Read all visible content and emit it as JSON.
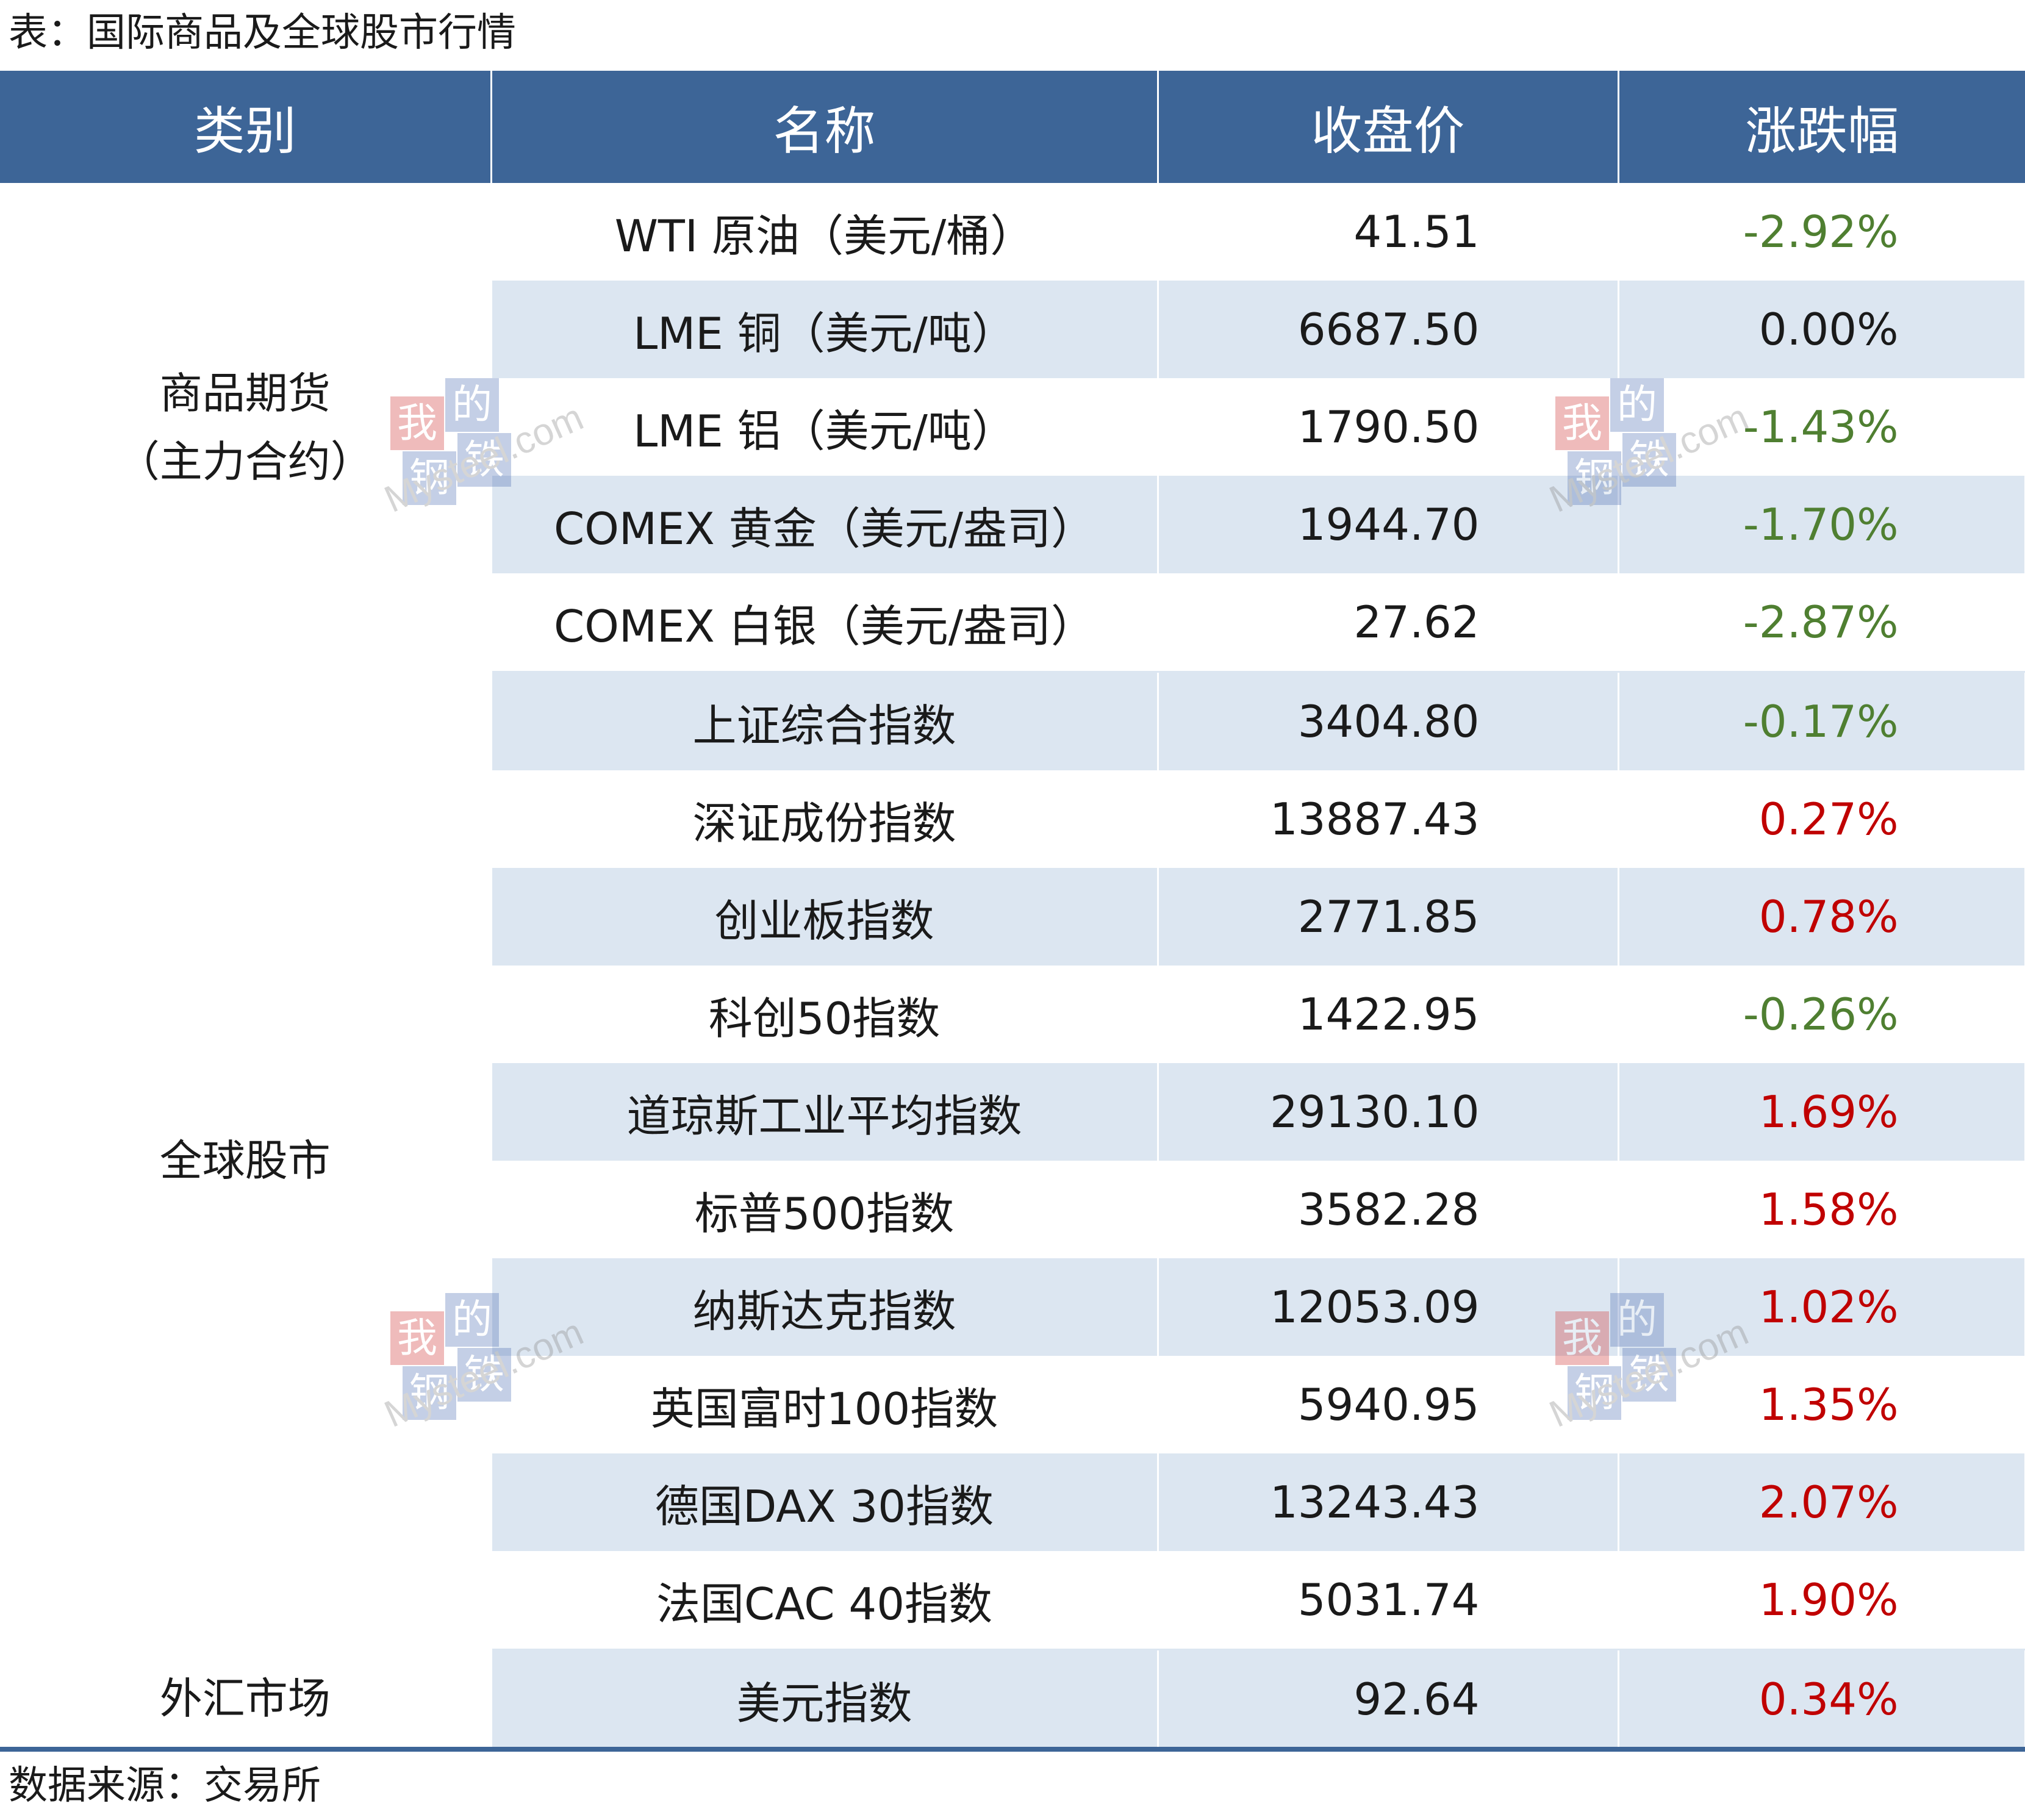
{
  "caption": "表：国际商品及全球股市行情",
  "headers": [
    "类别",
    "名称",
    "收盘价",
    "涨跌幅"
  ],
  "groups": [
    {
      "category_line1": "商品期货",
      "category_line2": "（主力合约）",
      "rows": [
        {
          "name": "WTI 原油（美元/桶）",
          "price": "41.51",
          "change": "-2.92%",
          "direction": "down"
        },
        {
          "name": "LME 铜（美元/吨）",
          "price": "6687.50",
          "change": "0.00%",
          "direction": "flat"
        },
        {
          "name": "LME 铝（美元/吨）",
          "price": "1790.50",
          "change": "-1.43%",
          "direction": "down"
        },
        {
          "name": "COMEX 黄金（美元/盎司）",
          "price": "1944.70",
          "change": "-1.70%",
          "direction": "down"
        },
        {
          "name": "COMEX 白银（美元/盎司）",
          "price": "27.62",
          "change": "-2.87%",
          "direction": "down"
        }
      ]
    },
    {
      "category_line1": "全球股市",
      "rows": [
        {
          "name": "上证综合指数",
          "price": "3404.80",
          "change": "-0.17%",
          "direction": "down"
        },
        {
          "name": "深证成份指数",
          "price": "13887.43",
          "change": "0.27%",
          "direction": "up"
        },
        {
          "name": "创业板指数",
          "price": "2771.85",
          "change": "0.78%",
          "direction": "up"
        },
        {
          "name": "科创50指数",
          "price": "1422.95",
          "change": "-0.26%",
          "direction": "down"
        },
        {
          "name": "道琼斯工业平均指数",
          "price": "29130.10",
          "change": "1.69%",
          "direction": "up"
        },
        {
          "name": "标普500指数",
          "price": "3582.28",
          "change": "1.58%",
          "direction": "up"
        },
        {
          "name": "纳斯达克指数",
          "price": "12053.09",
          "change": "1.02%",
          "direction": "up"
        },
        {
          "name": "英国富时100指数",
          "price": "5940.95",
          "change": "1.35%",
          "direction": "up"
        },
        {
          "name": "德国DAX 30指数",
          "price": "13243.43",
          "change": "2.07%",
          "direction": "up"
        },
        {
          "name": "法国CAC 40指数",
          "price": "5031.74",
          "change": "1.90%",
          "direction": "up"
        }
      ]
    },
    {
      "category_line1": "外汇市场",
      "rows": [
        {
          "name": "美元指数",
          "price": "92.64",
          "change": "0.34%",
          "direction": "up"
        }
      ]
    }
  ],
  "source": "数据来源：交易所",
  "watermark": {
    "chars": [
      "我",
      "的",
      "钢",
      "铁"
    ],
    "text": "Mysteel.com"
  },
  "colors": {
    "header_bg": "#3d6597",
    "alt_row": "#dce6f1",
    "up": "#c00000",
    "down": "#4f7f31"
  }
}
